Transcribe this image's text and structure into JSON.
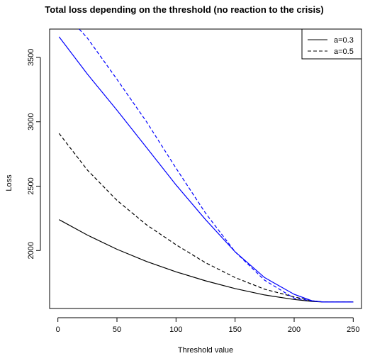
{
  "chart_data": {
    "type": "line",
    "title": "Total loss depending on the threshold (no reaction to the crisis)",
    "xlabel": "Threshold value",
    "ylabel": "Loss",
    "xlim": [
      -7,
      257
    ],
    "ylim": [
      1550,
      3720
    ],
    "xticks": [
      0,
      50,
      100,
      150,
      200,
      250
    ],
    "yticks": [
      2000,
      2500,
      3000,
      3500
    ],
    "grid": false,
    "legend": {
      "placement": "top-right",
      "entries": [
        {
          "label": "a=0.3",
          "dash": "solid"
        },
        {
          "label": "a=0.5",
          "dash": "dashed"
        }
      ]
    },
    "series": [
      {
        "color": "#000000",
        "dash": "solid",
        "x": [
          1,
          25,
          50,
          75,
          100,
          125,
          150,
          175,
          200,
          215,
          225,
          250
        ],
        "y": [
          2240,
          2120,
          2010,
          1915,
          1835,
          1765,
          1705,
          1655,
          1620,
          1605,
          1600,
          1600
        ]
      },
      {
        "color": "#000000",
        "dash": "dashed",
        "x": [
          1,
          25,
          50,
          75,
          100,
          125,
          150,
          175,
          200,
          215,
          225,
          250
        ],
        "y": [
          2910,
          2625,
          2390,
          2200,
          2045,
          1905,
          1790,
          1700,
          1640,
          1610,
          1600,
          1600
        ]
      },
      {
        "color": "#0000ff",
        "dash": "solid",
        "x": [
          1,
          25,
          50,
          75,
          100,
          125,
          150,
          175,
          200,
          215,
          225,
          250
        ],
        "y": [
          3660,
          3370,
          3090,
          2800,
          2510,
          2240,
          1990,
          1790,
          1660,
          1610,
          1600,
          1600
        ]
      },
      {
        "color": "#0000ff",
        "dash": "dashed",
        "x": [
          18,
          25,
          50,
          75,
          100,
          125,
          150,
          175,
          200,
          215,
          225,
          250
        ],
        "y": [
          3720,
          3650,
          3330,
          3000,
          2640,
          2290,
          1990,
          1770,
          1630,
          1610,
          1600,
          1600
        ]
      }
    ]
  }
}
